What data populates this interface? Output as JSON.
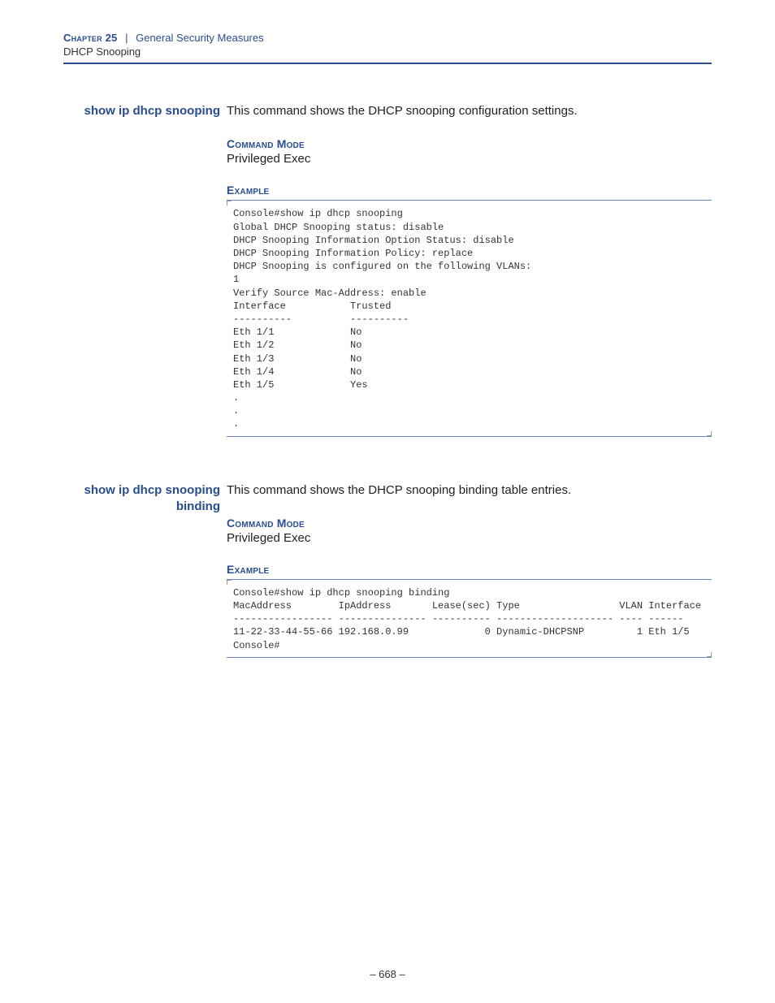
{
  "header": {
    "chapter_label": "Chapter 25",
    "pipe": "|",
    "chapter_title": "General Security Measures",
    "subtitle": "DHCP Snooping",
    "rule_color": "#2a4d8f"
  },
  "sections": [
    {
      "cmd_name": "show ip dhcp snooping",
      "description": "This command shows the DHCP snooping configuration settings.",
      "mode_label": "Command Mode",
      "mode_text": "Privileged Exec",
      "example_label": "Example",
      "console": "Console#show ip dhcp snooping\nGlobal DHCP Snooping status: disable\nDHCP Snooping Information Option Status: disable\nDHCP Snooping Information Policy: replace\nDHCP Snooping is configured on the following VLANs:\n1\nVerify Source Mac-Address: enable\nInterface           Trusted\n----------          ----------\nEth 1/1             No\nEth 1/2             No\nEth 1/3             No\nEth 1/4             No\nEth 1/5             Yes\n.\n.\n."
    },
    {
      "cmd_name": "show ip dhcp snooping binding",
      "description": "This command shows the DHCP snooping binding table entries.",
      "mode_label": "Command Mode",
      "mode_text": "Privileged Exec",
      "example_label": "Example",
      "console": "Console#show ip dhcp snooping binding\nMacAddress        IpAddress       Lease(sec) Type                 VLAN Interface\n----------------- --------------- ---------- -------------------- ---- ------\n11-22-33-44-55-66 192.168.0.99             0 Dynamic-DHCPSNP         1 Eth 1/5\nConsole#"
    }
  ],
  "page_number": "– 668 –",
  "colors": {
    "accent": "#2a4d8f",
    "rule": "#6b8abf",
    "text": "#222222",
    "mono": "#333333"
  }
}
